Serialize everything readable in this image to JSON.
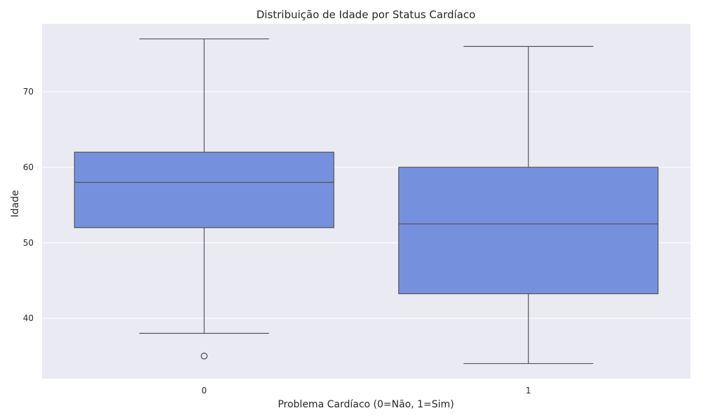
{
  "chart_data": {
    "type": "boxplot",
    "title": "Distribuição de Idade por Status Cardíaco",
    "xlabel": "Problema Cardíaco (0=Não, 1=Sim)",
    "ylabel": "Idade",
    "ylim": [
      32,
      79
    ],
    "yticks": [
      40,
      50,
      60,
      70
    ],
    "grid": true,
    "categories": [
      "0",
      "1"
    ],
    "boxes": [
      {
        "category": "0",
        "whisker_low": 38,
        "q1": 52,
        "median": 58,
        "q3": 62,
        "whisker_high": 77,
        "outliers": [
          35
        ]
      },
      {
        "category": "1",
        "whisker_low": 34,
        "q1": 43.25,
        "median": 52.5,
        "q3": 60,
        "whisker_high": 76,
        "outliers": []
      }
    ],
    "colors": {
      "box_fill": "#7591de",
      "line": "#555555",
      "background": "#eaeaf2",
      "grid": "#ffffff"
    }
  }
}
